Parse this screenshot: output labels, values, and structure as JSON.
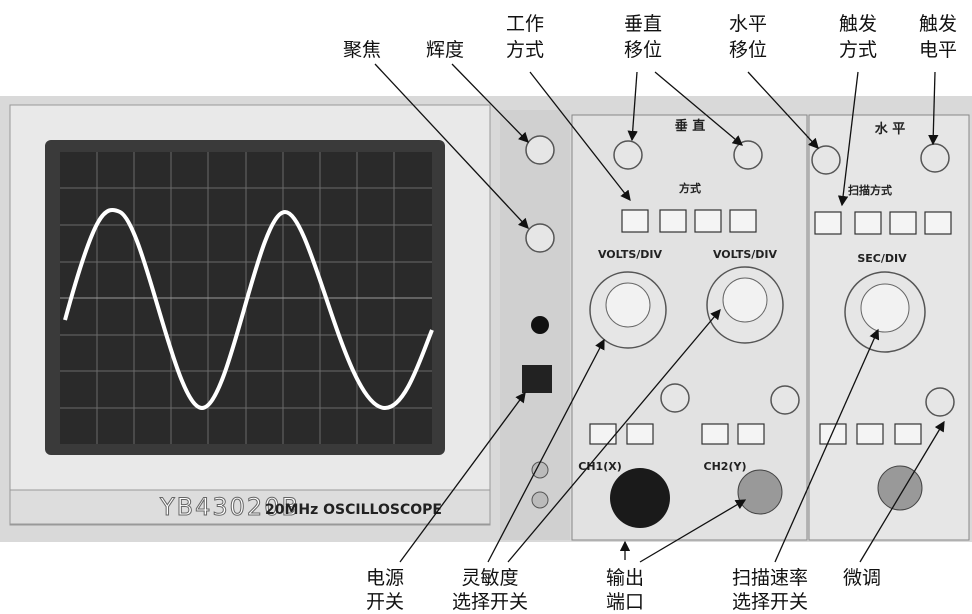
{
  "top_labels": [
    {
      "lines": [
        "聚焦"
      ]
    },
    {
      "lines": [
        "辉度"
      ]
    },
    {
      "lines": [
        "工作",
        "方式"
      ]
    },
    {
      "lines": [
        "垂直",
        "移位"
      ]
    },
    {
      "lines": [
        "水平",
        "移位"
      ]
    },
    {
      "lines": [
        "触发",
        "方式"
      ]
    },
    {
      "lines": [
        "触发",
        "电平"
      ]
    }
  ],
  "bottom_labels": [
    {
      "lines": [
        "电源",
        "开关"
      ]
    },
    {
      "lines": [
        "灵敏度",
        "选择开关"
      ]
    },
    {
      "lines": [
        "输出",
        "端口"
      ]
    },
    {
      "lines": [
        "扫描速率",
        "选择开关"
      ]
    },
    {
      "lines": [
        "微调"
      ]
    }
  ],
  "panel": {
    "model": "YB43020B",
    "name": "20MHz  OSCILLOSCOPE",
    "vertical": "垂 直",
    "horizontal": "水 平",
    "volts_div": "VOLTS/DIV",
    "sec_div": "SEC/DIV",
    "ch1": "CH1(X)",
    "ch2": "CH2(Y)",
    "mode": "方式",
    "sweep_mode": "扫描方式"
  }
}
